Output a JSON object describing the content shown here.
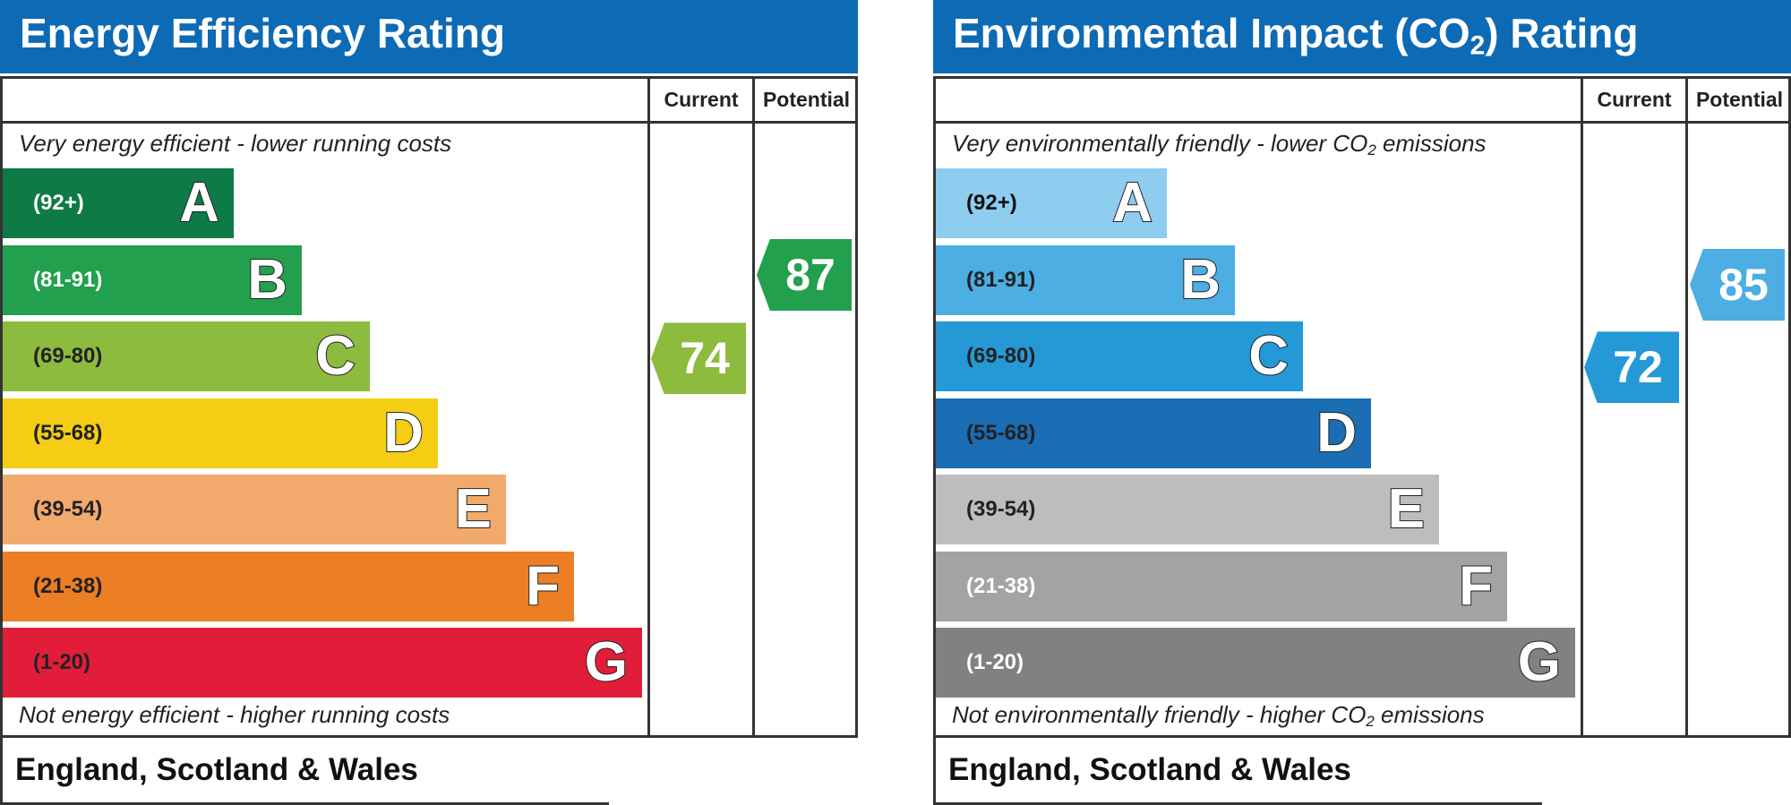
{
  "chart_data": [
    {
      "type": "bar",
      "title": "Energy Efficiency Rating",
      "title_parts": [
        "Energy Efficiency Rating",
        "",
        ""
      ],
      "column_headers": {
        "current": "Current",
        "potential": "Potential"
      },
      "top_note": [
        "Very energy efficient - lower running costs",
        "",
        ""
      ],
      "bottom_note": [
        "Not energy efficient - higher running costs",
        "",
        ""
      ],
      "footer": "England, Scotland & Wales",
      "categories": [
        "A",
        "B",
        "C",
        "D",
        "E",
        "F",
        "G"
      ],
      "ranges": [
        "(92+)",
        "(81-91)",
        "(69-80)",
        "(55-68)",
        "(39-54)",
        "(21-38)",
        "(1-20)"
      ],
      "values": [
        92,
        81,
        69,
        55,
        39,
        21,
        1
      ],
      "band_colors": [
        "#0e7b46",
        "#22a04e",
        "#8cbb3e",
        "#f5cd14",
        "#f2a96c",
        "#ec7e23",
        "#e21d3a"
      ],
      "range_text_colors": [
        "#ffffff",
        "#ffffff",
        "#222222",
        "#222222",
        "#222222",
        "#222222",
        "#222222"
      ],
      "current": {
        "value": 74,
        "band": "C",
        "color": "#8cbb3e"
      },
      "potential": {
        "value": 87,
        "band": "B",
        "color": "#22a04e"
      }
    },
    {
      "type": "bar",
      "title": "Environmental Impact (CO2) Rating",
      "title_parts": [
        "Environmental Impact (CO",
        "2",
        ") Rating"
      ],
      "column_headers": {
        "current": "Current",
        "potential": "Potential"
      },
      "top_note": [
        "Very environmentally friendly - lower CO",
        "2",
        " emissions"
      ],
      "bottom_note": [
        "Not environmentally friendly - higher CO",
        "2",
        " emissions"
      ],
      "footer": "England, Scotland & Wales",
      "categories": [
        "A",
        "B",
        "C",
        "D",
        "E",
        "F",
        "G"
      ],
      "ranges": [
        "(92+)",
        "(81-91)",
        "(69-80)",
        "(55-68)",
        "(39-54)",
        "(21-38)",
        "(1-20)"
      ],
      "values": [
        92,
        81,
        69,
        55,
        39,
        21,
        1
      ],
      "band_colors": [
        "#8ecdf0",
        "#4caee2",
        "#2599d6",
        "#1b6db4",
        "#bdbdbb",
        "#a3a3a3",
        "#818181"
      ],
      "range_text_colors": [
        "#111111",
        "#222222",
        "#222222",
        "#222222",
        "#222222",
        "#ffffff",
        "#ffffff"
      ],
      "current": {
        "value": 72,
        "band": "C",
        "color": "#2599d6"
      },
      "potential": {
        "value": 85,
        "band": "B",
        "color": "#4caee2"
      }
    }
  ]
}
